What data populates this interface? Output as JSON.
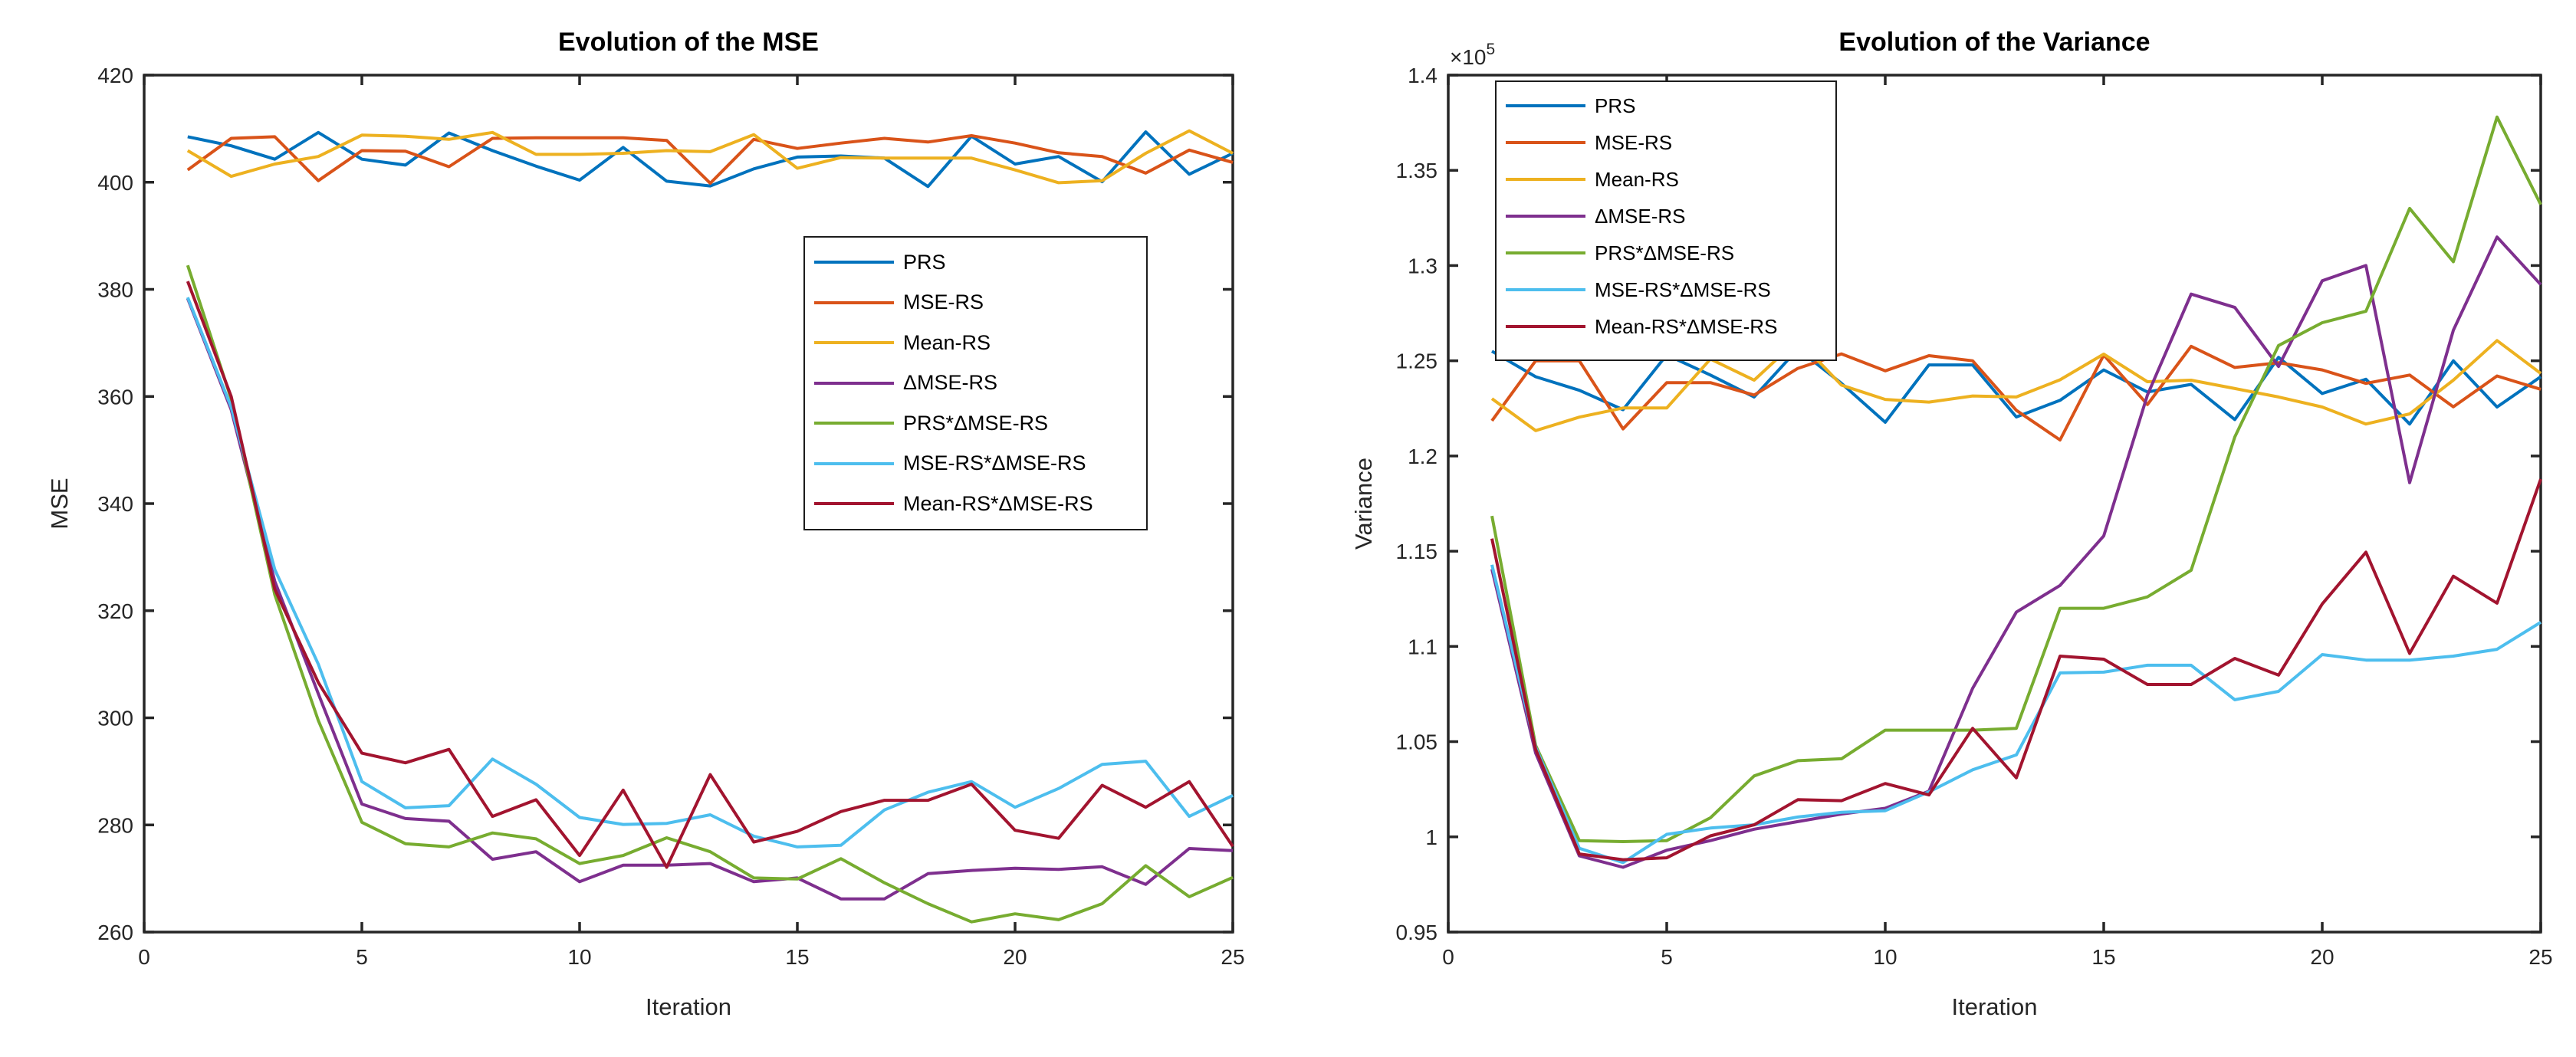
{
  "figure": {
    "background": "#ffffff",
    "axis_color": "#262626",
    "title_color": "#000000"
  },
  "chart_data": [
    {
      "type": "line",
      "title": "Evolution of the MSE",
      "xlabel": "Iteration",
      "ylabel": "MSE",
      "xlim": [
        0,
        25
      ],
      "ylim": [
        260,
        420
      ],
      "xticks": [
        "0",
        "5",
        "10",
        "15",
        "20",
        "25"
      ],
      "xtick_values": [
        0,
        5,
        10,
        15,
        20,
        25
      ],
      "yticks": [
        "260",
        "280",
        "300",
        "320",
        "340",
        "360",
        "380",
        "400",
        "420"
      ],
      "ytick_values": [
        260,
        280,
        300,
        320,
        340,
        360,
        380,
        400,
        420
      ],
      "grid": "off",
      "legend_position": "inside-right",
      "x": [
        1,
        2,
        3,
        4,
        5,
        6,
        7,
        8,
        9,
        10,
        11,
        12,
        13,
        14,
        15,
        16,
        17,
        18,
        19,
        20,
        21,
        22,
        23,
        24,
        25
      ],
      "series": [
        {
          "name": "PRS",
          "color": "#0072BD",
          "values": [
            408.5,
            406.8,
            404.3,
            409.3,
            404.3,
            403.2,
            409.2,
            405.9,
            403.0,
            400.4,
            406.5,
            400.2,
            399.3,
            402.5,
            404.7,
            404.9,
            404.5,
            399.2,
            408.6,
            403.4,
            404.8,
            400.1,
            409.4,
            401.5,
            405.4
          ]
        },
        {
          "name": "MSE-RS",
          "color": "#D95319",
          "values": [
            402.3,
            408.2,
            408.5,
            400.3,
            405.9,
            405.8,
            402.9,
            408.2,
            408.3,
            408.3,
            408.3,
            407.8,
            399.8,
            408.0,
            406.3,
            407.3,
            408.2,
            407.5,
            408.7,
            407.3,
            405.5,
            404.8,
            401.7,
            406.0,
            403.7
          ]
        },
        {
          "name": "Mean-RS",
          "color": "#EDB120",
          "values": [
            405.9,
            401.1,
            403.4,
            404.8,
            408.8,
            408.6,
            408.0,
            409.3,
            405.2,
            405.2,
            405.4,
            405.9,
            405.7,
            408.9,
            402.6,
            404.6,
            404.5,
            404.5,
            404.5,
            402.3,
            399.9,
            400.3,
            405.4,
            409.6,
            405.4
          ]
        },
        {
          "name": "ΔMSE-RS",
          "color": "#7E2F8E",
          "values": [
            378.3,
            357.5,
            325.5,
            304.5,
            283.9,
            281.2,
            280.7,
            273.6,
            275.0,
            269.4,
            272.5,
            272.5,
            272.8,
            269.4,
            270.1,
            266.2,
            266.2,
            270.9,
            271.5,
            271.9,
            271.7,
            272.2,
            268.9,
            275.6,
            275.2
          ]
        },
        {
          "name": "PRS*ΔMSE-RS",
          "color": "#77AC30",
          "values": [
            384.5,
            359.5,
            323.0,
            299.5,
            280.5,
            276.5,
            275.9,
            278.5,
            277.4,
            272.8,
            274.3,
            277.6,
            275.0,
            270.1,
            269.9,
            273.7,
            269.2,
            265.3,
            261.9,
            263.4,
            262.3,
            265.3,
            272.4,
            266.6,
            270.2
          ]
        },
        {
          "name": "MSE-RS*ΔMSE-RS",
          "color": "#4DBEEE",
          "values": [
            378.5,
            358.0,
            327.7,
            310.0,
            288.1,
            283.2,
            283.6,
            292.3,
            287.6,
            281.4,
            280.1,
            280.3,
            281.9,
            277.9,
            275.9,
            276.2,
            282.8,
            286.1,
            288.1,
            283.3,
            286.8,
            291.3,
            291.9,
            281.6,
            285.5
          ]
        },
        {
          "name": "Mean-RS*ΔMSE-RS",
          "color": "#A2142F",
          "values": [
            381.5,
            360.0,
            324.0,
            306.6,
            293.4,
            291.6,
            294.1,
            281.6,
            284.7,
            274.3,
            286.5,
            272.1,
            289.4,
            276.8,
            278.8,
            282.5,
            284.6,
            284.6,
            287.6,
            279.0,
            277.5,
            287.4,
            283.3,
            288.1,
            276.0
          ]
        }
      ]
    },
    {
      "type": "line",
      "title": "Evolution of the Variance",
      "xlabel": "Iteration",
      "ylabel": "Variance",
      "y_exponent": {
        "base": "×10",
        "exp": "5"
      },
      "values_scale": "1e5",
      "xlim": [
        0,
        25
      ],
      "ylim": [
        0.95,
        1.4
      ],
      "xticks": [
        "0",
        "5",
        "10",
        "15",
        "20",
        "25"
      ],
      "xtick_values": [
        0,
        5,
        10,
        15,
        20,
        25
      ],
      "yticks": [
        "0.95",
        "1",
        "1.05",
        "1.1",
        "1.15",
        "1.2",
        "1.25",
        "1.3",
        "1.35",
        "1.4"
      ],
      "ytick_values": [
        0.95,
        1.0,
        1.05,
        1.1,
        1.15,
        1.2,
        1.25,
        1.3,
        1.35,
        1.4
      ],
      "grid": "off",
      "legend_position": "inside-top-left",
      "x": [
        1,
        2,
        3,
        4,
        5,
        6,
        7,
        8,
        9,
        10,
        11,
        12,
        13,
        14,
        15,
        16,
        17,
        18,
        19,
        20,
        21,
        22,
        23,
        24,
        25
      ],
      "series": [
        {
          "name": "PRS",
          "color": "#0072BD",
          "values": [
            1.255,
            1.2416,
            1.2345,
            1.2243,
            1.2531,
            1.2425,
            1.231,
            1.2562,
            1.2381,
            1.2177,
            1.2478,
            1.2478,
            1.2205,
            1.2292,
            1.2452,
            1.2336,
            1.2376,
            1.2191,
            1.2518,
            1.2328,
            1.2403,
            1.2168,
            1.25,
            1.2257,
            1.2416
          ]
        },
        {
          "name": "MSE-RS",
          "color": "#D95319",
          "values": [
            1.2185,
            1.25,
            1.25,
            1.2142,
            1.2385,
            1.2385,
            1.232,
            1.246,
            1.2536,
            1.2447,
            1.2527,
            1.25,
            1.224,
            1.2084,
            1.253,
            1.227,
            1.2576,
            1.2465,
            1.249,
            1.2452,
            1.2381,
            1.2425,
            1.2258,
            1.242,
            1.235
          ]
        },
        {
          "name": "Mean-RS",
          "color": "#EDB120",
          "values": [
            1.2301,
            1.2133,
            1.2204,
            1.2252,
            1.2252,
            1.2509,
            1.2398,
            1.2611,
            1.2372,
            1.2297,
            1.2283,
            1.2315,
            1.231,
            1.24,
            1.2535,
            1.239,
            1.2398,
            1.2354,
            1.231,
            1.2257,
            1.2168,
            1.2221,
            1.2398,
            1.2606,
            1.2434
          ]
        },
        {
          "name": "ΔMSE-RS",
          "color": "#7E2F8E",
          "values": [
            1.1406,
            1.044,
            0.99,
            0.984,
            0.993,
            0.998,
            1.004,
            1.008,
            1.012,
            1.015,
            1.024,
            1.078,
            1.118,
            1.132,
            1.158,
            1.232,
            1.285,
            1.278,
            1.247,
            1.292,
            1.3,
            1.186,
            1.266,
            1.315,
            1.29
          ]
        },
        {
          "name": "PRS*ΔMSE-RS",
          "color": "#77AC30",
          "values": [
            1.1685,
            1.048,
            0.998,
            0.9975,
            0.998,
            1.01,
            1.032,
            1.04,
            1.041,
            1.056,
            1.056,
            1.056,
            1.057,
            1.12,
            1.12,
            1.126,
            1.14,
            1.21,
            1.258,
            1.27,
            1.276,
            1.33,
            1.302,
            1.378,
            1.332
          ]
        },
        {
          "name": "MSE-RS*ΔMSE-RS",
          "color": "#4DBEEE",
          "values": [
            1.1429,
            1.047,
            0.994,
            0.9865,
            1.0013,
            1.0046,
            1.0063,
            1.0104,
            1.0129,
            1.0137,
            1.0236,
            1.0352,
            1.043,
            1.0861,
            1.0865,
            1.0901,
            1.0901,
            1.072,
            1.0764,
            1.0957,
            1.0928,
            1.0928,
            1.0949,
            1.0985,
            1.1127
          ]
        },
        {
          "name": "Mean-RS*ΔMSE-RS",
          "color": "#A2142F",
          "values": [
            1.1566,
            1.046,
            0.991,
            0.988,
            0.989,
            1.0005,
            1.0063,
            1.0195,
            1.019,
            1.028,
            1.022,
            1.057,
            1.031,
            1.0949,
            1.0933,
            1.08,
            1.08,
            1.0937,
            1.0849,
            1.1223,
            1.1495,
            1.0963,
            1.1369,
            1.1227,
            1.1879
          ]
        }
      ]
    }
  ]
}
